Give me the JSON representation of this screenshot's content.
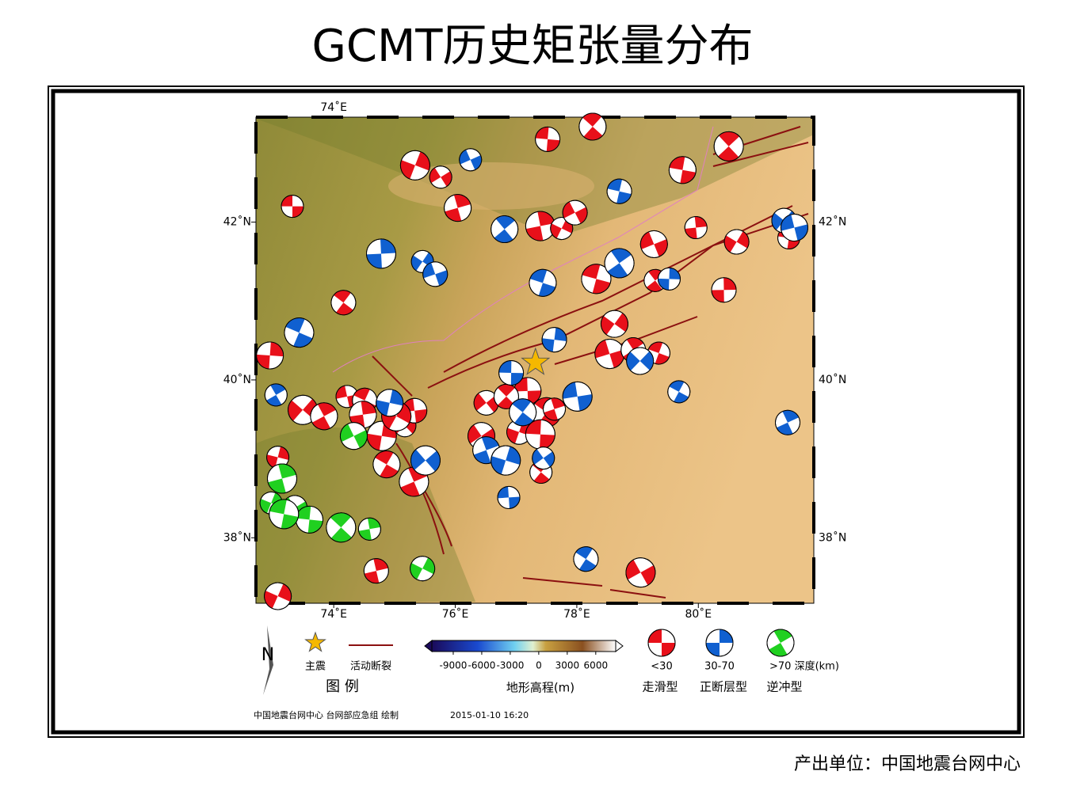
{
  "title": "GCMT历史矩张量分布",
  "chart_data": {
    "type": "map",
    "xlim": [
      72.72,
      81.9
    ],
    "ylim": [
      37.17,
      43.33
    ],
    "xticks": [
      {
        "value": 74,
        "label": "74˚E"
      },
      {
        "value": 76,
        "label": "76˚E"
      },
      {
        "value": 78,
        "label": "78˚E"
      },
      {
        "value": 80,
        "label": "80˚E"
      }
    ],
    "yticks": [
      {
        "value": 38,
        "label": "38˚N"
      },
      {
        "value": 40,
        "label": "40˚N"
      },
      {
        "value": 42,
        "label": "42˚N"
      }
    ],
    "mainshock": {
      "lon": 77.32,
      "lat": 40.22,
      "color": "#f5b800"
    },
    "fault_color": "#8b1010",
    "events": [
      {
        "lon": 73.32,
        "lat": 42.2,
        "color": "#e8101a"
      },
      {
        "lon": 74.16,
        "lat": 40.98,
        "color": "#e8101a"
      },
      {
        "lon": 76.04,
        "lat": 42.18,
        "color": "#e8101a"
      },
      {
        "lon": 75.34,
        "lat": 42.72,
        "color": "#e8101a"
      },
      {
        "lon": 75.76,
        "lat": 42.57,
        "color": "#e8101a"
      },
      {
        "lon": 77.52,
        "lat": 43.05,
        "color": "#e8101a"
      },
      {
        "lon": 78.26,
        "lat": 43.21,
        "color": "#e8101a"
      },
      {
        "lon": 77.4,
        "lat": 41.95,
        "color": "#e8101a"
      },
      {
        "lon": 77.75,
        "lat": 41.92,
        "color": "#e8101a"
      },
      {
        "lon": 77.97,
        "lat": 42.12,
        "color": "#e8101a"
      },
      {
        "lon": 79.74,
        "lat": 42.66,
        "color": "#e8101a"
      },
      {
        "lon": 80.5,
        "lat": 42.96,
        "color": "#e8101a"
      },
      {
        "lon": 79.96,
        "lat": 41.93,
        "color": "#e8101a"
      },
      {
        "lon": 80.63,
        "lat": 41.75,
        "color": "#e8101a"
      },
      {
        "lon": 79.27,
        "lat": 41.72,
        "color": "#e8101a"
      },
      {
        "lon": 78.32,
        "lat": 41.28,
        "color": "#e8101a"
      },
      {
        "lon": 79.29,
        "lat": 41.26,
        "color": "#e8101a"
      },
      {
        "lon": 80.42,
        "lat": 41.14,
        "color": "#e8101a"
      },
      {
        "lon": 78.62,
        "lat": 40.71,
        "color": "#e8101a"
      },
      {
        "lon": 78.54,
        "lat": 40.33,
        "color": "#e8101a"
      },
      {
        "lon": 79.35,
        "lat": 40.34,
        "color": "#e8101a"
      },
      {
        "lon": 78.93,
        "lat": 40.38,
        "color": "#e8101a"
      },
      {
        "lon": 72.95,
        "lat": 40.31,
        "color": "#e8101a"
      },
      {
        "lon": 73.49,
        "lat": 39.62,
        "color": "#e8101a"
      },
      {
        "lon": 74.22,
        "lat": 39.79,
        "color": "#e8101a"
      },
      {
        "lon": 74.51,
        "lat": 39.74,
        "color": "#e8101a"
      },
      {
        "lon": 73.84,
        "lat": 39.54,
        "color": "#e8101a"
      },
      {
        "lon": 74.79,
        "lat": 39.29,
        "color": "#e8101a"
      },
      {
        "lon": 75.17,
        "lat": 39.42,
        "color": "#e8101a"
      },
      {
        "lon": 75.33,
        "lat": 39.61,
        "color": "#e8101a"
      },
      {
        "lon": 74.87,
        "lat": 38.93,
        "color": "#e8101a"
      },
      {
        "lon": 75.32,
        "lat": 38.71,
        "color": "#e8101a"
      },
      {
        "lon": 73.08,
        "lat": 39.02,
        "color": "#e8101a"
      },
      {
        "lon": 76.51,
        "lat": 39.71,
        "color": "#e8101a"
      },
      {
        "lon": 77.19,
        "lat": 39.86,
        "color": "#e8101a"
      },
      {
        "lon": 77.5,
        "lat": 39.59,
        "color": "#e8101a"
      },
      {
        "lon": 77.63,
        "lat": 39.63,
        "color": "#e8101a"
      },
      {
        "lon": 77.05,
        "lat": 39.34,
        "color": "#e8101a"
      },
      {
        "lon": 76.43,
        "lat": 39.29,
        "color": "#e8101a"
      },
      {
        "lon": 77.4,
        "lat": 39.31,
        "color": "#e8101a"
      },
      {
        "lon": 77.41,
        "lat": 38.83,
        "color": "#e8101a"
      },
      {
        "lon": 74.7,
        "lat": 37.58,
        "color": "#e8101a"
      },
      {
        "lon": 73.08,
        "lat": 37.26,
        "color": "#e8101a"
      },
      {
        "lon": 79.05,
        "lat": 37.56,
        "color": "#e8101a"
      },
      {
        "lon": 81.49,
        "lat": 41.8,
        "color": "#e8101a"
      },
      {
        "lon": 76.84,
        "lat": 39.79,
        "color": "#e8101a"
      },
      {
        "lon": 74.48,
        "lat": 39.56,
        "color": "#e8101a"
      },
      {
        "lon": 75.03,
        "lat": 39.54,
        "color": "#e8101a"
      },
      {
        "lon": 76.25,
        "lat": 42.79,
        "color": "#1060d0"
      },
      {
        "lon": 78.7,
        "lat": 42.39,
        "color": "#1060d0"
      },
      {
        "lon": 76.81,
        "lat": 41.91,
        "color": "#1060d0"
      },
      {
        "lon": 74.78,
        "lat": 41.6,
        "color": "#1060d0"
      },
      {
        "lon": 75.46,
        "lat": 41.5,
        "color": "#1060d0"
      },
      {
        "lon": 75.67,
        "lat": 41.34,
        "color": "#1060d0"
      },
      {
        "lon": 77.44,
        "lat": 41.23,
        "color": "#1060d0"
      },
      {
        "lon": 78.7,
        "lat": 41.48,
        "color": "#1060d0"
      },
      {
        "lon": 79.52,
        "lat": 41.28,
        "color": "#1060d0"
      },
      {
        "lon": 81.41,
        "lat": 42.02,
        "color": "#1060d0"
      },
      {
        "lon": 81.58,
        "lat": 41.93,
        "color": "#1060d0"
      },
      {
        "lon": 73.43,
        "lat": 40.6,
        "color": "#1060d0"
      },
      {
        "lon": 73.05,
        "lat": 39.81,
        "color": "#1060d0"
      },
      {
        "lon": 77.63,
        "lat": 40.51,
        "color": "#1060d0"
      },
      {
        "lon": 79.04,
        "lat": 40.24,
        "color": "#1060d0"
      },
      {
        "lon": 78.01,
        "lat": 39.79,
        "color": "#1060d0"
      },
      {
        "lon": 79.68,
        "lat": 39.85,
        "color": "#1060d0"
      },
      {
        "lon": 81.47,
        "lat": 39.46,
        "color": "#1060d0"
      },
      {
        "lon": 74.92,
        "lat": 39.71,
        "color": "#1060d0"
      },
      {
        "lon": 75.51,
        "lat": 38.98,
        "color": "#1060d0"
      },
      {
        "lon": 76.88,
        "lat": 38.51,
        "color": "#1060d0"
      },
      {
        "lon": 78.15,
        "lat": 37.73,
        "color": "#1060d0"
      },
      {
        "lon": 76.51,
        "lat": 39.11,
        "color": "#1060d0"
      },
      {
        "lon": 76.83,
        "lat": 38.98,
        "color": "#1060d0"
      },
      {
        "lon": 77.45,
        "lat": 39.01,
        "color": "#1060d0"
      },
      {
        "lon": 76.92,
        "lat": 40.09,
        "color": "#1060d0"
      },
      {
        "lon": 77.11,
        "lat": 39.59,
        "color": "#1060d0"
      },
      {
        "lon": 73.15,
        "lat": 38.75,
        "color": "#20d020"
      },
      {
        "lon": 72.97,
        "lat": 38.44,
        "color": "#20d020"
      },
      {
        "lon": 73.36,
        "lat": 38.38,
        "color": "#20d020"
      },
      {
        "lon": 73.6,
        "lat": 38.23,
        "color": "#20d020"
      },
      {
        "lon": 74.12,
        "lat": 38.13,
        "color": "#20d020"
      },
      {
        "lon": 74.59,
        "lat": 38.11,
        "color": "#20d020"
      },
      {
        "lon": 75.46,
        "lat": 37.61,
        "color": "#20d020"
      },
      {
        "lon": 74.33,
        "lat": 39.29,
        "color": "#20d020"
      },
      {
        "lon": 73.18,
        "lat": 38.3,
        "color": "#20d020"
      }
    ]
  },
  "legend": {
    "title": "图 例",
    "mainshock": "主震",
    "fault": "活动断裂",
    "colorbar": {
      "label": "地形高程(m)",
      "lim": [
        -11250,
        8100
      ],
      "ticks": [
        -9000,
        -6000,
        -3000,
        0,
        3000,
        6000
      ]
    },
    "depth": [
      {
        "label": "<30",
        "type": "走滑型",
        "color": "#e8101a"
      },
      {
        "label": "30-70",
        "type": "正断层型",
        "color": "#1060d0"
      },
      {
        "label": ">70 深度(km)",
        "type": "逆冲型",
        "color": "#20d020"
      }
    ]
  },
  "credit": "中国地震台网中心 台网部应急组 绘制",
  "timestamp": "2015-01-10 16:20",
  "footer": "产出单位：中国地震台网中心"
}
